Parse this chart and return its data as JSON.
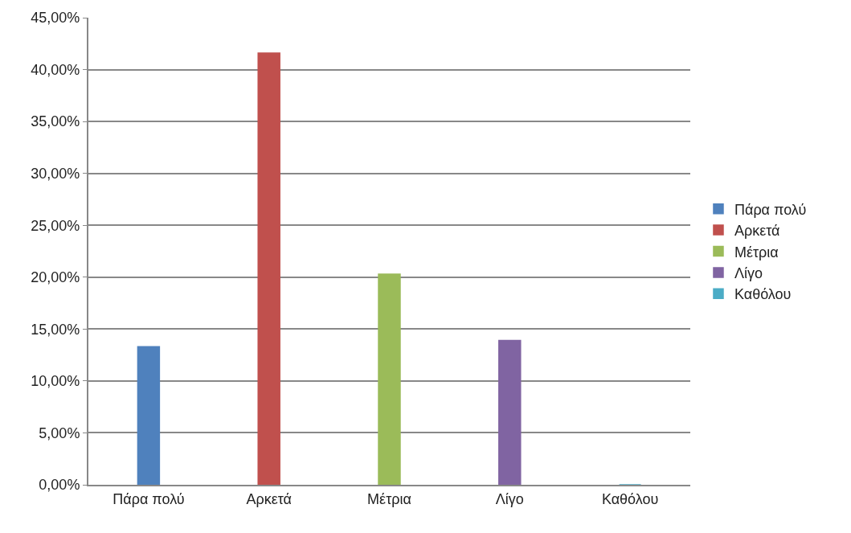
{
  "chart_data": {
    "type": "bar",
    "categories": [
      "Πάρα πολύ",
      "Αρκετά",
      "Μέτρια",
      "Λίγο",
      "Καθόλου"
    ],
    "series": [
      {
        "name": "Πάρα πολύ",
        "color": "#4f81bd",
        "values": [
          13.3,
          null,
          null,
          null,
          null
        ]
      },
      {
        "name": "Αρκετά",
        "color": "#c0504d",
        "values": [
          null,
          41.6,
          null,
          null,
          null
        ]
      },
      {
        "name": "Μέτρια",
        "color": "#9bbb59",
        "values": [
          null,
          null,
          20.3,
          null,
          null
        ]
      },
      {
        "name": "Λίγο",
        "color": "#8064a2",
        "values": [
          null,
          null,
          null,
          13.9,
          null
        ]
      },
      {
        "name": "Καθόλου",
        "color": "#4bacc6",
        "values": [
          null,
          null,
          null,
          null,
          0
        ]
      }
    ],
    "ylim": [
      0,
      45
    ],
    "yticks": [
      {
        "value": 0,
        "label": "0,00%"
      },
      {
        "value": 5,
        "label": "5,00%"
      },
      {
        "value": 10,
        "label": "10,00%"
      },
      {
        "value": 15,
        "label": "15,00%"
      },
      {
        "value": 20,
        "label": "20,00%"
      },
      {
        "value": 25,
        "label": "25,00%"
      },
      {
        "value": 30,
        "label": "30,00%"
      },
      {
        "value": 35,
        "label": "35,00%"
      },
      {
        "value": 40,
        "label": "40,00%"
      },
      {
        "value": 45,
        "label": "45,00%"
      }
    ],
    "grid": "y",
    "legend": "right"
  }
}
